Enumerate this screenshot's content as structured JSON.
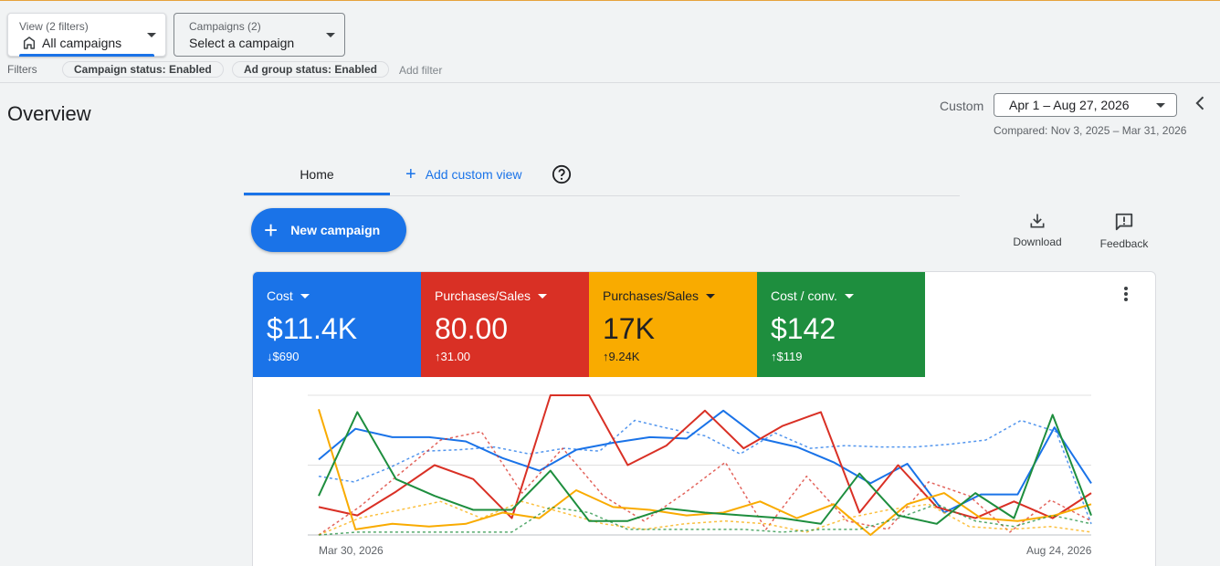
{
  "view_selector": {
    "label": "View (2 filters)",
    "value": "All campaigns"
  },
  "campaign_selector": {
    "label": "Campaigns (2)",
    "value": "Select a campaign"
  },
  "filters": {
    "label": "Filters",
    "chips": [
      "Campaign status: Enabled",
      "Ad group status: Enabled"
    ],
    "add_filter": "Add filter"
  },
  "page_title": "Overview",
  "date_range": {
    "label": "Custom",
    "value": "Apr 1 – Aug 27, 2026",
    "compared": "Compared: Nov 3, 2025 – Mar 31, 2026"
  },
  "tabs": {
    "home": "Home",
    "add_custom_view": "Add custom view"
  },
  "new_campaign": "New campaign",
  "tools": {
    "download": "Download",
    "feedback": "Feedback"
  },
  "colors": {
    "blue": "#1a73e8",
    "red": "#d93025",
    "yellow": "#f9ab00",
    "green": "#1e8e3e"
  },
  "metrics": [
    {
      "label": "Cost",
      "value": "$11.4K",
      "delta": "$690",
      "direction": "down",
      "color": "#1a73e8"
    },
    {
      "label": "Purchases/Sales",
      "value": "80.00",
      "delta": "31.00",
      "direction": "up",
      "color": "#d93025"
    },
    {
      "label": "Purchases/Sales",
      "value": "17K",
      "delta": "9.24K",
      "direction": "up",
      "color": "#f9ab00"
    },
    {
      "label": "Cost / conv.",
      "value": "$142",
      "delta": "$119",
      "direction": "up",
      "color": "#1e8e3e"
    }
  ],
  "chart_data": {
    "type": "line",
    "x_labels": [
      "Mar 30, 2026",
      "Aug 24, 2026"
    ],
    "y_range": [
      0,
      100
    ],
    "grid": true,
    "series": [
      {
        "color": "#1a73e8",
        "style": "solid",
        "values": [
          54,
          76,
          70,
          70,
          67,
          55,
          46,
          61,
          66,
          70,
          69,
          89,
          69,
          63,
          52,
          37,
          51,
          16,
          29,
          29,
          77,
          37
        ]
      },
      {
        "color": "#1a73e8",
        "style": "dashed",
        "values": [
          42,
          38,
          48,
          60,
          61,
          63,
          58,
          62,
          60,
          82,
          76,
          71,
          58,
          73,
          62,
          64,
          63,
          63,
          65,
          68,
          82,
          74,
          8
        ]
      },
      {
        "color": "#d93025",
        "style": "solid",
        "values": [
          20,
          14,
          31,
          50,
          40,
          12,
          100,
          100,
          50,
          64,
          89,
          62,
          78,
          88,
          16,
          50,
          20,
          12,
          24,
          12,
          30
        ]
      },
      {
        "color": "#d93025",
        "style": "dashed",
        "values": [
          0,
          20,
          44,
          68,
          74,
          30,
          62,
          28,
          10,
          30,
          52,
          4,
          42,
          10,
          4,
          38,
          28,
          2,
          25,
          10
        ]
      },
      {
        "color": "#f9ab00",
        "style": "solid",
        "values": [
          90,
          4,
          8,
          6,
          8,
          16,
          12,
          32,
          20,
          18,
          14,
          16,
          24,
          12,
          22,
          0,
          22,
          30,
          12,
          10,
          14,
          22
        ]
      },
      {
        "color": "#f9ab00",
        "style": "dashed",
        "values": [
          0,
          12,
          18,
          24,
          12,
          24,
          16,
          8,
          4,
          8,
          10,
          8,
          2,
          12,
          18,
          22,
          6,
          4,
          6,
          2
        ]
      },
      {
        "color": "#1e8e3e",
        "style": "solid",
        "values": [
          28,
          88,
          40,
          28,
          18,
          18,
          46,
          10,
          10,
          19,
          16,
          14,
          12,
          8,
          44,
          14,
          8,
          30,
          12,
          86,
          14
        ]
      },
      {
        "color": "#1e8e3e",
        "style": "dashed",
        "values": [
          0,
          2,
          2,
          2,
          2,
          2,
          20,
          16,
          4,
          4,
          4,
          4,
          2,
          4,
          4,
          12,
          22,
          10,
          6,
          14,
          8
        ]
      }
    ]
  }
}
